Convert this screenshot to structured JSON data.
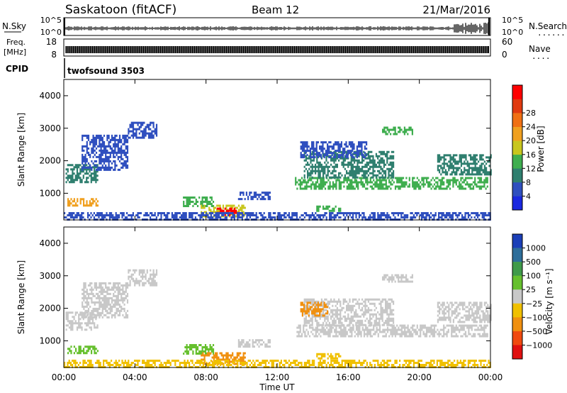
{
  "header": {
    "station": "Saskatoon (fitACF)",
    "beam": "Beam 12",
    "date": "21/Mar/2016"
  },
  "strips": {
    "nsky": {
      "label": "N.Sky",
      "ticks": [
        "10^5",
        "10^0"
      ],
      "right_ticks": [
        "10^5",
        "10^0"
      ],
      "right_label": "N.Search",
      "right_dots": "......."
    },
    "freq": {
      "label_line1": "Freq.",
      "label_line2": "[MHz]",
      "ticks": [
        "18",
        "8"
      ],
      "right_ticks": [
        "60",
        "0"
      ],
      "right_label": "Nave",
      "right_dots": "...."
    },
    "cpid": {
      "label": "CPID",
      "program": "twofsound 3503"
    }
  },
  "time_axis": {
    "label": "Time UT",
    "ticks": [
      "00:00",
      "04:00",
      "08:00",
      "12:00",
      "16:00",
      "20:00",
      "00:00"
    ]
  },
  "chart_data": [
    {
      "type": "heatmap",
      "name": "power",
      "ylabel": "Slant Range [km]",
      "ylim": [
        180,
        4500
      ],
      "yticks": [
        "1000",
        "2000",
        "3000",
        "4000"
      ],
      "xlim": [
        0,
        24
      ],
      "colorbar": {
        "label": "Power [dB]",
        "ticks": [
          "4",
          "8",
          "12",
          "16",
          "20",
          "24",
          "28"
        ],
        "colors": [
          "#1a28e0",
          "#2f4fbf",
          "#2f7f6f",
          "#3fae4f",
          "#c8c61e",
          "#f0a020",
          "#f07014",
          "#e03a10",
          "#ff0000"
        ]
      },
      "regions": [
        {
          "t": [
            0.1,
            1.9
          ],
          "r": [
            1350,
            1900
          ],
          "level": 2
        },
        {
          "t": [
            1.0,
            3.6
          ],
          "r": [
            1700,
            2800
          ],
          "level": 1
        },
        {
          "t": [
            3.6,
            5.2
          ],
          "r": [
            2700,
            3200
          ],
          "level": 1
        },
        {
          "t": [
            0.2,
            1.9
          ],
          "r": [
            600,
            850
          ],
          "level": 5
        },
        {
          "t": [
            6.7,
            8.4
          ],
          "r": [
            600,
            900
          ],
          "level": 3
        },
        {
          "t": [
            7.7,
            10.2
          ],
          "r": [
            300,
            650
          ],
          "level": 4
        },
        {
          "t": [
            8.6,
            9.9
          ],
          "r": [
            300,
            560
          ],
          "level": 8
        },
        {
          "t": [
            9.8,
            11.6
          ],
          "r": [
            800,
            1050
          ],
          "level": 1
        },
        {
          "t": [
            13.0,
            23.8
          ],
          "r": [
            1150,
            1500
          ],
          "level": 3
        },
        {
          "t": [
            13.5,
            18.5
          ],
          "r": [
            1500,
            2300
          ],
          "level": 2
        },
        {
          "t": [
            13.3,
            17.0
          ],
          "r": [
            2100,
            2600
          ],
          "level": 1
        },
        {
          "t": [
            17.9,
            19.6
          ],
          "r": [
            2850,
            3050
          ],
          "level": 3
        },
        {
          "t": [
            21.0,
            24.0
          ],
          "r": [
            1600,
            2200
          ],
          "level": 2
        },
        {
          "t": [
            14.2,
            15.6
          ],
          "r": [
            480,
            620
          ],
          "level": 3
        },
        {
          "t": [
            0.0,
            24.0
          ],
          "r": [
            180,
            420
          ],
          "level": 1
        }
      ]
    },
    {
      "type": "heatmap",
      "name": "velocity",
      "ylabel": "Slant Range [km]",
      "ylim": [
        180,
        4500
      ],
      "yticks": [
        "1000",
        "2000",
        "3000",
        "4000"
      ],
      "xlim": [
        0,
        24
      ],
      "colorbar": {
        "label": "Velocity [m s⁻¹]",
        "ticks": [
          "1000",
          "500",
          "100",
          "25",
          "−25",
          "−100",
          "−500",
          "−1000"
        ],
        "colors": [
          "#1b3fb8",
          "#2e6e9a",
          "#3f9a4a",
          "#66c02e",
          "#c8c8c8",
          "#f0c000",
          "#f09010",
          "#f04a10",
          "#e01010"
        ]
      },
      "regions": [
        {
          "t": [
            0.1,
            1.9
          ],
          "r": [
            1350,
            1900
          ],
          "level": 4
        },
        {
          "t": [
            1.0,
            3.6
          ],
          "r": [
            1700,
            2800
          ],
          "level": 4
        },
        {
          "t": [
            3.6,
            5.2
          ],
          "r": [
            2700,
            3200
          ],
          "level": 4
        },
        {
          "t": [
            0.2,
            1.9
          ],
          "r": [
            600,
            850
          ],
          "level": 3
        },
        {
          "t": [
            6.7,
            8.4
          ],
          "r": [
            600,
            900
          ],
          "level": 3
        },
        {
          "t": [
            7.7,
            10.2
          ],
          "r": [
            300,
            650
          ],
          "level": 6
        },
        {
          "t": [
            9.8,
            11.6
          ],
          "r": [
            800,
            1050
          ],
          "level": 4
        },
        {
          "t": [
            13.0,
            23.8
          ],
          "r": [
            1150,
            1500
          ],
          "level": 4
        },
        {
          "t": [
            13.5,
            18.5
          ],
          "r": [
            1500,
            2300
          ],
          "level": 4
        },
        {
          "t": [
            13.3,
            14.8
          ],
          "r": [
            1800,
            2200
          ],
          "level": 6
        },
        {
          "t": [
            17.9,
            19.6
          ],
          "r": [
            2850,
            3050
          ],
          "level": 4
        },
        {
          "t": [
            21.0,
            24.0
          ],
          "r": [
            1600,
            2200
          ],
          "level": 4
        },
        {
          "t": [
            14.2,
            15.6
          ],
          "r": [
            480,
            620
          ],
          "level": 5
        },
        {
          "t": [
            0.0,
            24.0
          ],
          "r": [
            180,
            420
          ],
          "level": 5
        }
      ]
    }
  ]
}
